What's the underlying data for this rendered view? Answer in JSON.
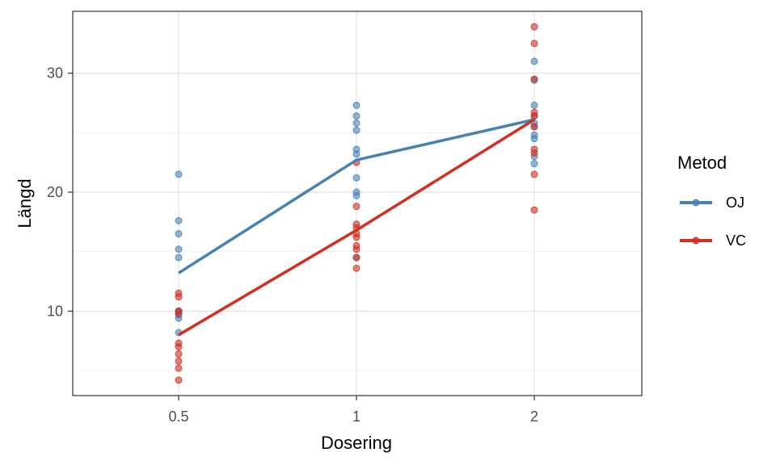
{
  "chart_data": {
    "type": "line",
    "xlabel": "Dosering",
    "ylabel": "Längd",
    "categories": [
      "0.5",
      "1",
      "2"
    ],
    "ylim": [
      2.9,
      35.2
    ],
    "yticks": [
      10,
      20,
      30
    ],
    "grid": true,
    "legend": {
      "title": "Metod",
      "position": "right"
    },
    "series": [
      {
        "name": "OJ",
        "color": "#4682B4",
        "means": [
          13.2,
          22.7,
          26.1
        ],
        "points": [
          [
            21.5,
            17.6,
            16.5,
            15.2,
            14.5,
            10.0,
            9.7,
            9.4,
            8.2,
            10.0
          ],
          [
            27.3,
            26.4,
            25.8,
            25.2,
            23.6,
            23.2,
            21.2,
            20.0,
            19.7,
            14.5
          ],
          [
            31.0,
            29.4,
            27.3,
            26.4,
            25.8,
            25.5,
            24.8,
            24.5,
            23.0,
            22.4
          ]
        ]
      },
      {
        "name": "VC",
        "color": "#D12F21",
        "means": [
          8.0,
          16.8,
          26.1
        ],
        "points": [
          [
            11.5,
            11.2,
            7.3,
            7.0,
            6.4,
            5.8,
            5.2,
            4.2,
            10.0,
            9.8
          ],
          [
            22.5,
            18.8,
            17.3,
            16.5,
            15.5,
            15.2,
            14.5,
            13.6,
            17.0,
            16.2
          ],
          [
            33.9,
            32.5,
            29.5,
            26.7,
            25.5,
            23.6,
            23.3,
            21.5,
            18.5,
            26.4
          ]
        ]
      }
    ]
  }
}
